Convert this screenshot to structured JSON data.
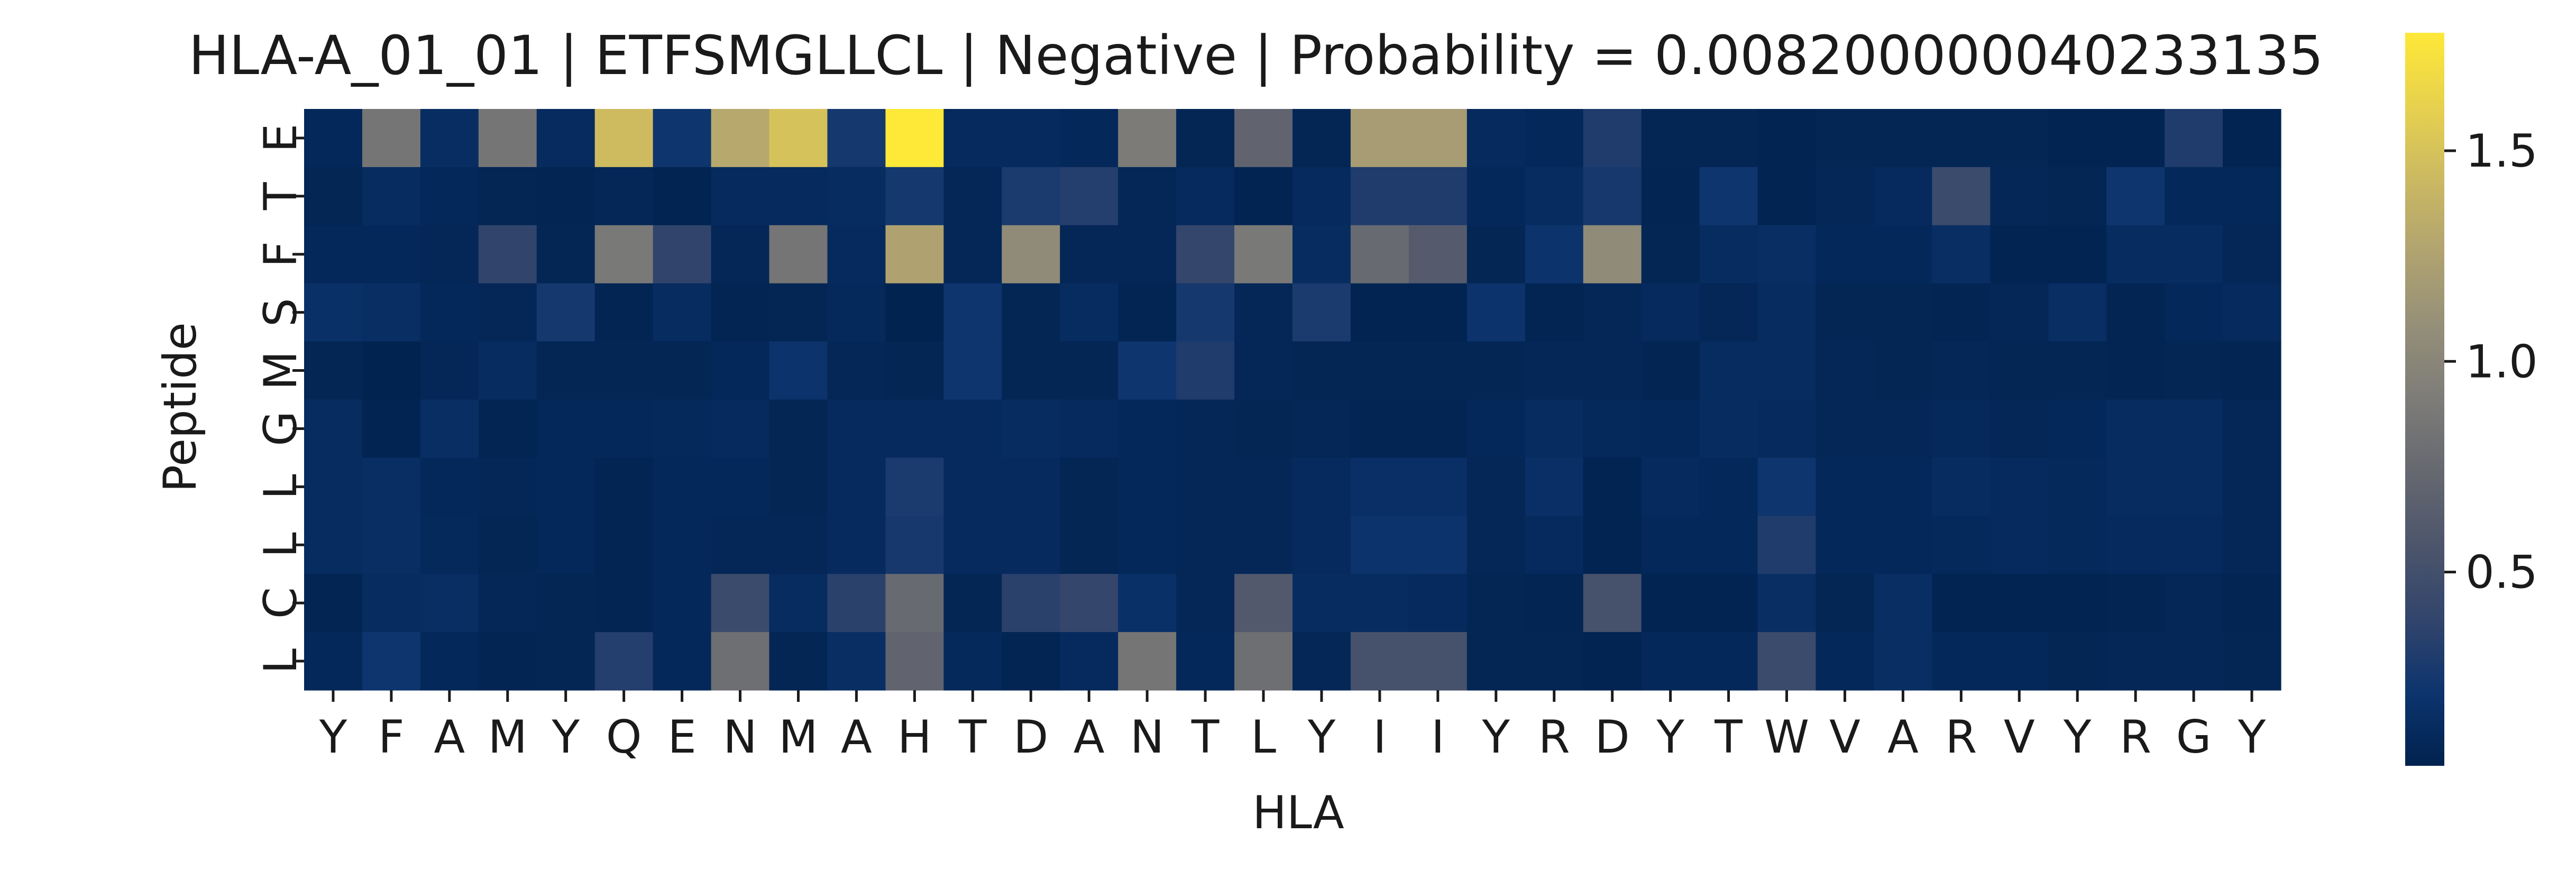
{
  "chart_data": {
    "type": "heatmap",
    "title": "HLA-A_01_01 | ETFSMGLLCL | Negative | Probability = 0.008200000040233135",
    "xlabel": "HLA",
    "ylabel": "Peptide",
    "x_categories": [
      "Y",
      "F",
      "A",
      "M",
      "Y",
      "Q",
      "E",
      "N",
      "M",
      "A",
      "H",
      "T",
      "D",
      "A",
      "N",
      "T",
      "L",
      "Y",
      "I",
      "I",
      "Y",
      "R",
      "D",
      "Y",
      "T",
      "W",
      "V",
      "A",
      "R",
      "V",
      "Y",
      "R",
      "G",
      "Y"
    ],
    "y_categories": [
      "E",
      "T",
      "F",
      "S",
      "M",
      "G",
      "L",
      "L",
      "C",
      "L"
    ],
    "colormap": "cividis",
    "colorbar": {
      "vmin": 0.04,
      "vmax": 1.78,
      "ticks": [
        0.5,
        1.0,
        1.5
      ],
      "tick_labels": [
        "0.5",
        "1.0",
        "1.5"
      ]
    },
    "values": [
      [
        0.1,
        0.85,
        0.15,
        0.85,
        0.13,
        1.45,
        0.22,
        1.3,
        1.5,
        0.25,
        1.78,
        0.12,
        0.12,
        0.1,
        0.9,
        0.08,
        0.7,
        0.08,
        1.2,
        1.2,
        0.12,
        0.1,
        0.3,
        0.08,
        0.08,
        0.06,
        0.08,
        0.08,
        0.08,
        0.08,
        0.06,
        0.06,
        0.3,
        0.06
      ],
      [
        0.08,
        0.14,
        0.1,
        0.08,
        0.07,
        0.09,
        0.06,
        0.12,
        0.12,
        0.14,
        0.25,
        0.09,
        0.28,
        0.32,
        0.09,
        0.12,
        0.06,
        0.12,
        0.3,
        0.3,
        0.1,
        0.14,
        0.26,
        0.07,
        0.22,
        0.06,
        0.09,
        0.12,
        0.45,
        0.09,
        0.08,
        0.22,
        0.1,
        0.1
      ],
      [
        0.1,
        0.1,
        0.09,
        0.38,
        0.08,
        0.88,
        0.38,
        0.09,
        0.85,
        0.12,
        1.25,
        0.09,
        1.05,
        0.09,
        0.09,
        0.4,
        0.88,
        0.14,
        0.75,
        0.62,
        0.08,
        0.2,
        1.05,
        0.08,
        0.14,
        0.16,
        0.1,
        0.1,
        0.16,
        0.06,
        0.06,
        0.14,
        0.14,
        0.09
      ],
      [
        0.18,
        0.16,
        0.1,
        0.09,
        0.25,
        0.07,
        0.14,
        0.07,
        0.08,
        0.11,
        0.05,
        0.22,
        0.08,
        0.14,
        0.07,
        0.25,
        0.09,
        0.28,
        0.06,
        0.06,
        0.2,
        0.07,
        0.09,
        0.12,
        0.09,
        0.14,
        0.08,
        0.08,
        0.07,
        0.09,
        0.16,
        0.07,
        0.1,
        0.12
      ],
      [
        0.08,
        0.05,
        0.09,
        0.14,
        0.08,
        0.08,
        0.08,
        0.1,
        0.2,
        0.09,
        0.08,
        0.22,
        0.08,
        0.08,
        0.22,
        0.3,
        0.09,
        0.08,
        0.08,
        0.08,
        0.08,
        0.09,
        0.09,
        0.07,
        0.14,
        0.14,
        0.09,
        0.08,
        0.09,
        0.08,
        0.08,
        0.07,
        0.08,
        0.07
      ],
      [
        0.14,
        0.06,
        0.16,
        0.07,
        0.1,
        0.1,
        0.11,
        0.12,
        0.08,
        0.12,
        0.12,
        0.12,
        0.14,
        0.12,
        0.1,
        0.09,
        0.08,
        0.09,
        0.07,
        0.07,
        0.1,
        0.14,
        0.11,
        0.1,
        0.14,
        0.12,
        0.09,
        0.09,
        0.11,
        0.09,
        0.1,
        0.14,
        0.14,
        0.09
      ],
      [
        0.14,
        0.16,
        0.1,
        0.09,
        0.1,
        0.07,
        0.1,
        0.1,
        0.08,
        0.12,
        0.28,
        0.12,
        0.12,
        0.08,
        0.1,
        0.09,
        0.09,
        0.12,
        0.17,
        0.17,
        0.09,
        0.17,
        0.06,
        0.12,
        0.1,
        0.22,
        0.1,
        0.1,
        0.14,
        0.12,
        0.11,
        0.14,
        0.14,
        0.09
      ],
      [
        0.14,
        0.16,
        0.11,
        0.08,
        0.1,
        0.07,
        0.1,
        0.09,
        0.09,
        0.12,
        0.26,
        0.12,
        0.12,
        0.08,
        0.1,
        0.09,
        0.09,
        0.12,
        0.2,
        0.2,
        0.09,
        0.12,
        0.06,
        0.1,
        0.1,
        0.3,
        0.1,
        0.1,
        0.11,
        0.12,
        0.11,
        0.12,
        0.12,
        0.09
      ],
      [
        0.07,
        0.14,
        0.16,
        0.09,
        0.08,
        0.07,
        0.1,
        0.45,
        0.14,
        0.35,
        0.75,
        0.08,
        0.35,
        0.4,
        0.18,
        0.09,
        0.6,
        0.14,
        0.14,
        0.12,
        0.08,
        0.07,
        0.52,
        0.06,
        0.06,
        0.16,
        0.08,
        0.16,
        0.06,
        0.06,
        0.06,
        0.07,
        0.09,
        0.07
      ],
      [
        0.1,
        0.22,
        0.1,
        0.07,
        0.08,
        0.32,
        0.1,
        0.8,
        0.08,
        0.16,
        0.7,
        0.11,
        0.07,
        0.12,
        0.85,
        0.1,
        0.8,
        0.09,
        0.52,
        0.52,
        0.08,
        0.08,
        0.06,
        0.1,
        0.1,
        0.45,
        0.1,
        0.16,
        0.1,
        0.1,
        0.08,
        0.09,
        0.09,
        0.08
      ]
    ]
  }
}
